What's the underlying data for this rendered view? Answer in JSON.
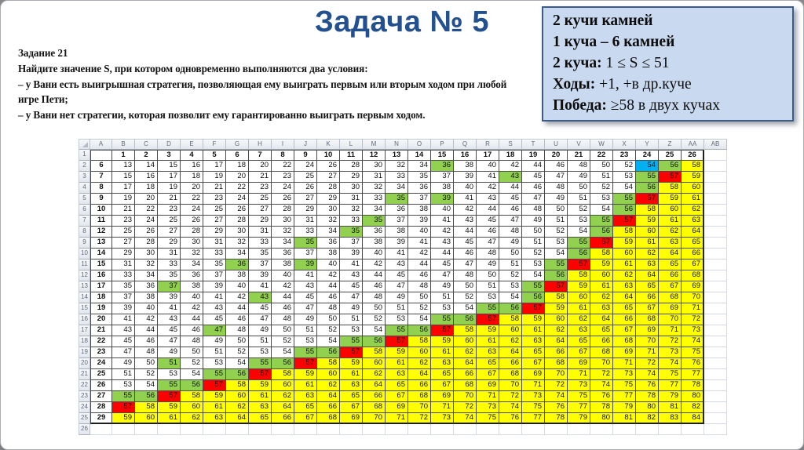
{
  "slide": {
    "title": "Задача № 5",
    "title_color": "#23508f",
    "task": {
      "heading": "Задание 21",
      "line1": "Найдите значение S, при котором одновременно выполняются два условия:",
      "line2": "– у Вани есть выигрышная стратегия, позволяющая ему выиграть первым или вторым ходом при любой игре Пети;",
      "line3": "– у Вани нет стратегии, которая позволит ему гарантированно выиграть первым ходом."
    },
    "info_box": {
      "fill_color": "#c9d9f0",
      "border_color": "#3e5a85",
      "lines": [
        {
          "bold": "2 кучи камней",
          "rest": ""
        },
        {
          "bold": "1 куча – 6 камней",
          "rest": ""
        },
        {
          "bold": "2 куча:",
          "rest": " 1 ≤ S ≤ 51"
        },
        {
          "bold": "Ходы:",
          "rest": " +1, +в др.куче"
        },
        {
          "bold": "Победа:",
          "rest": " ≥58 в двух кучах"
        }
      ]
    }
  },
  "chart_data": {
    "type": "table",
    "title": "",
    "column_letters": [
      "A",
      "B",
      "C",
      "D",
      "E",
      "F",
      "G",
      "H",
      "I",
      "J",
      "K",
      "L",
      "M",
      "N",
      "O",
      "P",
      "Q",
      "R",
      "S",
      "T",
      "U",
      "V",
      "W",
      "X",
      "Y",
      "Z",
      "AA",
      "AB"
    ],
    "col_headers": [
      1,
      2,
      3,
      4,
      5,
      6,
      7,
      8,
      9,
      10,
      11,
      12,
      13,
      14,
      15,
      16,
      17,
      18,
      19,
      20,
      21,
      22,
      23,
      24,
      25,
      26
    ],
    "row_numbers": [
      1,
      2,
      3,
      4,
      5,
      6,
      7,
      8,
      9,
      10,
      11,
      12,
      13,
      14,
      15,
      16,
      17,
      18,
      19,
      20,
      21,
      22,
      23,
      24,
      25,
      26
    ],
    "color_legend": {
      "W": "#FFFFFF",
      "G": "#92D050",
      "R": "#FF0000",
      "Y": "#FFFF00",
      "B": "#00B0F0"
    },
    "rows": [
      {
        "a": 6,
        "values": [
          13,
          14,
          15,
          16,
          17,
          18,
          20,
          22,
          24,
          26,
          28,
          30,
          32,
          34,
          36,
          38,
          40,
          42,
          44,
          46,
          48,
          50,
          52,
          54,
          56,
          58
        ],
        "colors": "WWWWWWWWWWWWWWGWWWWWWWWBGY"
      },
      {
        "a": 7,
        "values": [
          15,
          16,
          17,
          18,
          19,
          20,
          21,
          23,
          25,
          27,
          29,
          31,
          33,
          35,
          37,
          39,
          41,
          43,
          45,
          47,
          49,
          51,
          53,
          55,
          57,
          59
        ],
        "colors": "WWWWWWWWWWWWWWWWWGWWWWWGRY"
      },
      {
        "a": 8,
        "values": [
          17,
          18,
          19,
          20,
          21,
          22,
          23,
          24,
          26,
          28,
          30,
          32,
          34,
          36,
          38,
          40,
          42,
          44,
          46,
          48,
          50,
          52,
          54,
          56,
          58,
          60
        ],
        "colors": "WWWWWWWWWWWWWWWWWWWWWWWGYY"
      },
      {
        "a": 9,
        "values": [
          19,
          20,
          21,
          22,
          23,
          24,
          25,
          26,
          27,
          29,
          31,
          33,
          35,
          37,
          39,
          41,
          43,
          45,
          47,
          49,
          51,
          53,
          55,
          57,
          59,
          61
        ],
        "colors": "WWWWWWWWWWWWGWGWWWWWWWGRYY"
      },
      {
        "a": 10,
        "values": [
          21,
          22,
          23,
          24,
          25,
          26,
          27,
          28,
          29,
          30,
          32,
          34,
          36,
          38,
          40,
          42,
          44,
          46,
          48,
          50,
          52,
          54,
          56,
          58,
          60,
          62
        ],
        "colors": "WWWWWWWWWWWWWWWWWWWWWWGYYY"
      },
      {
        "a": 11,
        "values": [
          23,
          24,
          25,
          26,
          27,
          28,
          29,
          30,
          31,
          32,
          33,
          35,
          37,
          39,
          41,
          43,
          45,
          47,
          49,
          51,
          53,
          55,
          57,
          59,
          61,
          63
        ],
        "colors": "WWWWWWWWWWWGWWWWWWWWWGRYYY"
      },
      {
        "a": 12,
        "values": [
          25,
          26,
          27,
          28,
          29,
          30,
          31,
          32,
          33,
          34,
          35,
          36,
          38,
          40,
          42,
          44,
          46,
          48,
          50,
          52,
          54,
          56,
          58,
          60,
          62,
          64
        ],
        "colors": "WWWWWWWWWWGWWWWWWWWWWGYYYY"
      },
      {
        "a": 13,
        "values": [
          27,
          28,
          29,
          30,
          31,
          32,
          33,
          34,
          35,
          36,
          37,
          38,
          39,
          41,
          43,
          45,
          47,
          49,
          51,
          53,
          55,
          57,
          59,
          61,
          63,
          65
        ],
        "colors": "WWWWWWWWGWWWWWWWWWWWGRYYYY"
      },
      {
        "a": 14,
        "values": [
          29,
          30,
          31,
          32,
          33,
          34,
          35,
          36,
          37,
          38,
          39,
          40,
          41,
          42,
          44,
          46,
          48,
          50,
          52,
          54,
          56,
          58,
          60,
          62,
          64,
          66
        ],
        "colors": "WWWWWWWWWWWWWWWWWWWWGYYYYY"
      },
      {
        "a": 15,
        "values": [
          31,
          32,
          33,
          34,
          35,
          36,
          37,
          38,
          39,
          40,
          41,
          42,
          43,
          44,
          45,
          47,
          49,
          51,
          53,
          55,
          57,
          59,
          61,
          63,
          65,
          67
        ],
        "colors": "WWWWWGWWGWWWWWWWWWWGRYYYYY"
      },
      {
        "a": 16,
        "values": [
          33,
          34,
          35,
          36,
          37,
          38,
          39,
          40,
          41,
          42,
          43,
          44,
          45,
          46,
          47,
          48,
          50,
          52,
          54,
          56,
          58,
          60,
          62,
          64,
          66,
          68
        ],
        "colors": "WWWWWWWWWWWWWWWWWWWGYYYYYY"
      },
      {
        "a": 17,
        "values": [
          35,
          36,
          37,
          38,
          39,
          40,
          41,
          42,
          43,
          44,
          45,
          46,
          47,
          48,
          49,
          50,
          51,
          53,
          55,
          57,
          59,
          61,
          63,
          65,
          67,
          69
        ],
        "colors": "WWGWWWWWWWWWWWWWWWGRYYYYYY"
      },
      {
        "a": 18,
        "values": [
          37,
          38,
          39,
          40,
          41,
          42,
          43,
          44,
          45,
          46,
          47,
          48,
          49,
          50,
          51,
          52,
          53,
          54,
          56,
          58,
          60,
          62,
          64,
          66,
          68,
          70
        ],
        "colors": "WWWWWWGWWWWWWWWWWWGYYYYYYY"
      },
      {
        "a": 19,
        "values": [
          39,
          40,
          41,
          42,
          43,
          44,
          45,
          46,
          47,
          48,
          49,
          50,
          51,
          52,
          53,
          54,
          55,
          56,
          57,
          59,
          61,
          63,
          65,
          67,
          69,
          71
        ],
        "colors": "WWWWWWWWWWWWWWWWGGRYYYYYYY"
      },
      {
        "a": 20,
        "values": [
          41,
          42,
          43,
          44,
          45,
          46,
          47,
          48,
          49,
          50,
          51,
          52,
          53,
          54,
          55,
          56,
          57,
          58,
          59,
          60,
          62,
          64,
          66,
          68,
          70,
          72
        ],
        "colors": "WWWWWWWWWWWWWWGGRYYYYYYYYY"
      },
      {
        "a": 21,
        "values": [
          43,
          44,
          45,
          46,
          47,
          48,
          49,
          50,
          51,
          52,
          53,
          54,
          55,
          56,
          57,
          58,
          59,
          60,
          61,
          62,
          63,
          65,
          67,
          69,
          71,
          73
        ],
        "colors": "WWWWGWWWWWWWGGRYYYYYYYYYYY"
      },
      {
        "a": 22,
        "values": [
          45,
          46,
          47,
          48,
          49,
          50,
          51,
          52,
          53,
          54,
          55,
          56,
          57,
          58,
          59,
          60,
          61,
          62,
          63,
          64,
          65,
          66,
          68,
          70,
          72,
          74
        ],
        "colors": "WWWWWWWWWWGGRYYYYYYYYYYYYY"
      },
      {
        "a": 23,
        "values": [
          47,
          48,
          49,
          50,
          51,
          52,
          53,
          54,
          55,
          56,
          57,
          58,
          59,
          60,
          61,
          62,
          63,
          64,
          65,
          66,
          67,
          68,
          69,
          71,
          73,
          75
        ],
        "colors": "WWWWWWWWGGRYYYYYYYYYYYYYYY"
      },
      {
        "a": 24,
        "values": [
          49,
          50,
          51,
          52,
          53,
          54,
          55,
          56,
          57,
          58,
          59,
          60,
          61,
          62,
          63,
          64,
          65,
          66,
          67,
          68,
          69,
          70,
          71,
          72,
          74,
          76
        ],
        "colors": "WWGWWWGGRYYYYYYYYYYYYYYYYY"
      },
      {
        "a": 25,
        "values": [
          51,
          52,
          53,
          54,
          55,
          56,
          57,
          58,
          59,
          60,
          61,
          62,
          63,
          64,
          65,
          66,
          67,
          68,
          69,
          70,
          71,
          72,
          73,
          74,
          75,
          77
        ],
        "colors": "WWWWGGRYYYYYYYYYYYYYYYYYYY"
      },
      {
        "a": 26,
        "values": [
          53,
          54,
          55,
          56,
          57,
          58,
          59,
          60,
          61,
          62,
          63,
          64,
          65,
          66,
          67,
          68,
          69,
          70,
          71,
          72,
          73,
          74,
          75,
          76,
          77,
          78
        ],
        "colors": "WWGGRYYYYYYYYYYYYYYYYYYYYY"
      },
      {
        "a": 27,
        "values": [
          55,
          56,
          57,
          58,
          59,
          60,
          61,
          62,
          63,
          64,
          65,
          66,
          67,
          68,
          69,
          70,
          71,
          72,
          73,
          74,
          75,
          76,
          77,
          78,
          79,
          80
        ],
        "colors": "GGRYYYYYYYYYYYYYYYYYYYYYYY"
      },
      {
        "a": 28,
        "values": [
          57,
          58,
          59,
          60,
          61,
          62,
          63,
          64,
          65,
          66,
          67,
          68,
          69,
          70,
          71,
          72,
          73,
          74,
          75,
          76,
          77,
          78,
          79,
          80,
          81,
          82
        ],
        "colors": "RYYYYYYYYYYYYYYYYYYYYYYYYY"
      },
      {
        "a": 29,
        "values": [
          59,
          60,
          61,
          62,
          63,
          64,
          65,
          66,
          67,
          68,
          69,
          70,
          71,
          72,
          73,
          74,
          75,
          76,
          77,
          78,
          79,
          80,
          81,
          82,
          83,
          84
        ],
        "colors": "YYYYYYYYYYYYYYYYYYYYYYYYYY"
      }
    ]
  }
}
